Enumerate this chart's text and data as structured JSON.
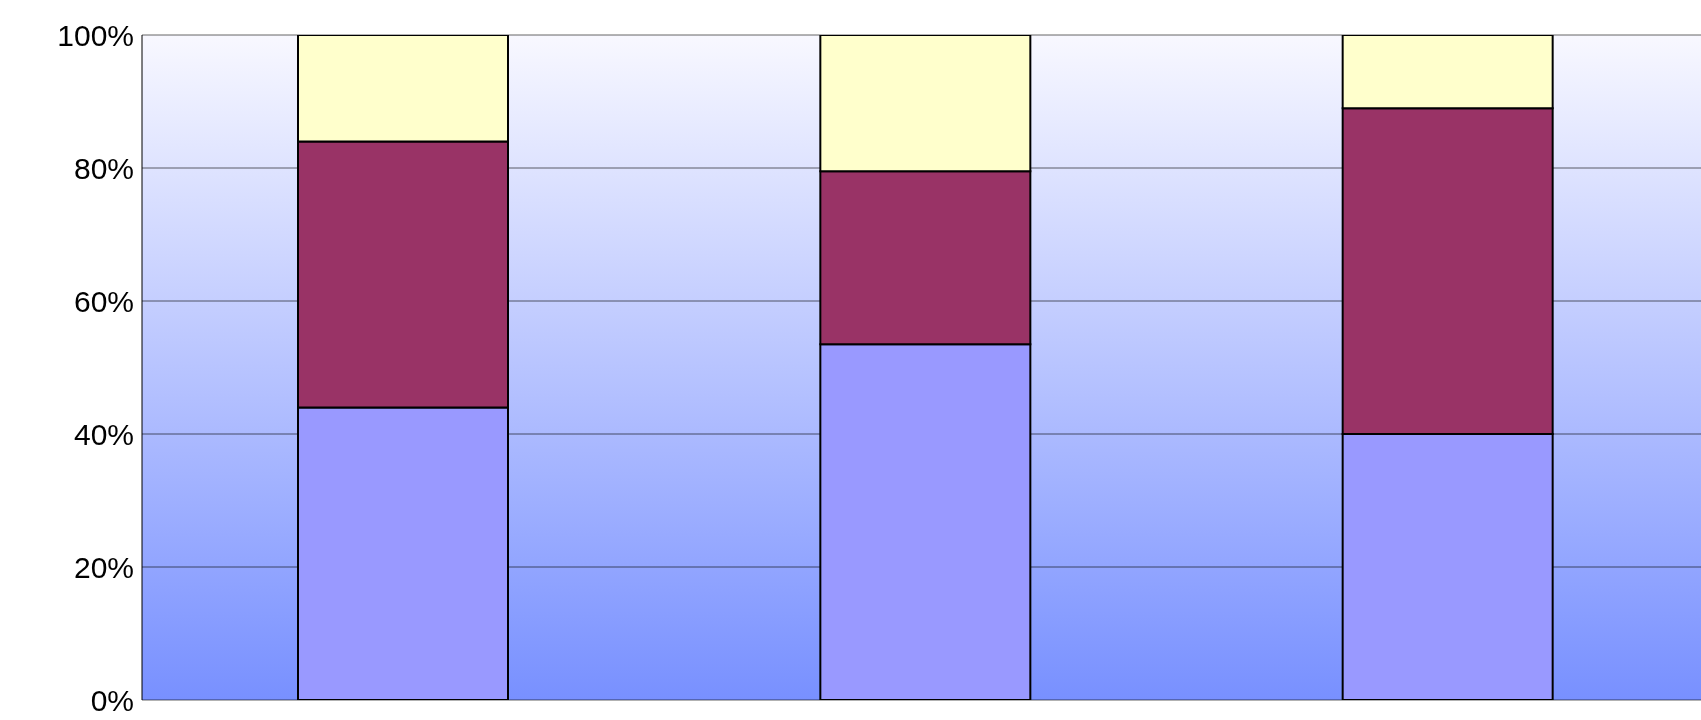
{
  "chart_data": {
    "type": "bar",
    "stacked": true,
    "categories": [
      null,
      null,
      null
    ],
    "series": [
      {
        "color": "#9999ff",
        "values": [
          44,
          53.5,
          40
        ]
      },
      {
        "color": "#993366",
        "values": [
          40,
          26,
          49
        ]
      },
      {
        "color": "#ffffcc",
        "values": [
          16,
          20.5,
          11
        ]
      }
    ],
    "ylim": [
      0,
      100
    ],
    "yticks": [
      {
        "value": 0,
        "label": "0%"
      },
      {
        "value": 20,
        "label": "20%"
      },
      {
        "value": 40,
        "label": "40%"
      },
      {
        "value": 60,
        "label": "60%"
      },
      {
        "value": 80,
        "label": "80%"
      },
      {
        "value": 100,
        "label": "100%"
      }
    ],
    "grid": "y",
    "legend": false
  }
}
